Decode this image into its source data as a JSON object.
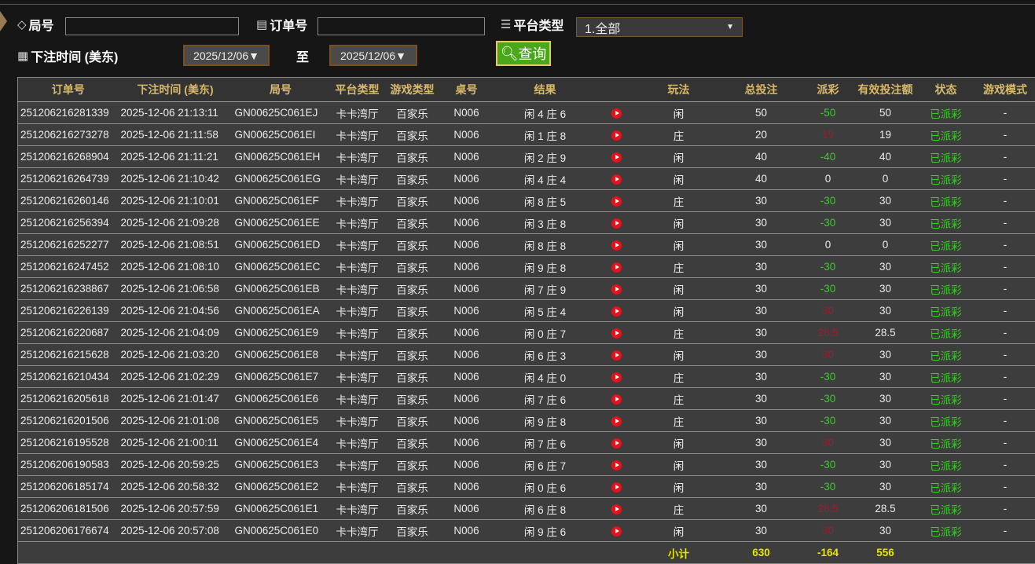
{
  "filters": {
    "round_label": "局号",
    "round_value": "",
    "order_label": "订单号",
    "order_value": "",
    "platform_label": "平台类型",
    "platform_value": "1.全部",
    "time_label": "下注时间 (美东)",
    "date_from": "2025/12/06▼",
    "to_label": "至",
    "date_to": "2025/12/06▼",
    "query_label": "查询"
  },
  "table": {
    "headers": [
      "订单号",
      "下注时间 (美东)",
      "局号",
      "平台类型",
      "游戏类型",
      "桌号",
      "结果",
      "",
      "玩法",
      "总投注",
      "派彩",
      "有效投注额",
      "状态",
      "游戏模式"
    ],
    "rows": [
      [
        "251206216281339",
        "2025-12-06 21:13:11",
        "GN00625C061EJ",
        "卡卡湾厅",
        "百家乐",
        "N006",
        "闲 4 庄 6",
        "闲",
        "50",
        "-50",
        "50",
        "已派彩",
        "-"
      ],
      [
        "251206216273278",
        "2025-12-06 21:11:58",
        "GN00625C061EI",
        "卡卡湾厅",
        "百家乐",
        "N006",
        "闲 1 庄 8",
        "庄",
        "20",
        "19",
        "19",
        "已派彩",
        "-"
      ],
      [
        "251206216268904",
        "2025-12-06 21:11:21",
        "GN00625C061EH",
        "卡卡湾厅",
        "百家乐",
        "N006",
        "闲 2 庄 9",
        "闲",
        "40",
        "-40",
        "40",
        "已派彩",
        "-"
      ],
      [
        "251206216264739",
        "2025-12-06 21:10:42",
        "GN00625C061EG",
        "卡卡湾厅",
        "百家乐",
        "N006",
        "闲 4 庄 4",
        "闲",
        "40",
        "0",
        "0",
        "已派彩",
        "-"
      ],
      [
        "251206216260146",
        "2025-12-06 21:10:01",
        "GN00625C061EF",
        "卡卡湾厅",
        "百家乐",
        "N006",
        "闲 8 庄 5",
        "庄",
        "30",
        "-30",
        "30",
        "已派彩",
        "-"
      ],
      [
        "251206216256394",
        "2025-12-06 21:09:28",
        "GN00625C061EE",
        "卡卡湾厅",
        "百家乐",
        "N006",
        "闲 3 庄 8",
        "闲",
        "30",
        "-30",
        "30",
        "已派彩",
        "-"
      ],
      [
        "251206216252277",
        "2025-12-06 21:08:51",
        "GN00625C061ED",
        "卡卡湾厅",
        "百家乐",
        "N006",
        "闲 8 庄 8",
        "闲",
        "30",
        "0",
        "0",
        "已派彩",
        "-"
      ],
      [
        "251206216247452",
        "2025-12-06 21:08:10",
        "GN00625C061EC",
        "卡卡湾厅",
        "百家乐",
        "N006",
        "闲 9 庄 8",
        "庄",
        "30",
        "-30",
        "30",
        "已派彩",
        "-"
      ],
      [
        "251206216238867",
        "2025-12-06 21:06:58",
        "GN00625C061EB",
        "卡卡湾厅",
        "百家乐",
        "N006",
        "闲 7 庄 9",
        "闲",
        "30",
        "-30",
        "30",
        "已派彩",
        "-"
      ],
      [
        "251206216226139",
        "2025-12-06 21:04:56",
        "GN00625C061EA",
        "卡卡湾厅",
        "百家乐",
        "N006",
        "闲 5 庄 4",
        "闲",
        "30",
        "30",
        "30",
        "已派彩",
        "-"
      ],
      [
        "251206216220687",
        "2025-12-06 21:04:09",
        "GN00625C061E9",
        "卡卡湾厅",
        "百家乐",
        "N006",
        "闲 0 庄 7",
        "庄",
        "30",
        "28.5",
        "28.5",
        "已派彩",
        "-"
      ],
      [
        "251206216215628",
        "2025-12-06 21:03:20",
        "GN00625C061E8",
        "卡卡湾厅",
        "百家乐",
        "N006",
        "闲 6 庄 3",
        "闲",
        "30",
        "30",
        "30",
        "已派彩",
        "-"
      ],
      [
        "251206216210434",
        "2025-12-06 21:02:29",
        "GN00625C061E7",
        "卡卡湾厅",
        "百家乐",
        "N006",
        "闲 4 庄 0",
        "庄",
        "30",
        "-30",
        "30",
        "已派彩",
        "-"
      ],
      [
        "251206216205618",
        "2025-12-06 21:01:47",
        "GN00625C061E6",
        "卡卡湾厅",
        "百家乐",
        "N006",
        "闲 7 庄 6",
        "庄",
        "30",
        "-30",
        "30",
        "已派彩",
        "-"
      ],
      [
        "251206216201506",
        "2025-12-06 21:01:08",
        "GN00625C061E5",
        "卡卡湾厅",
        "百家乐",
        "N006",
        "闲 9 庄 8",
        "庄",
        "30",
        "-30",
        "30",
        "已派彩",
        "-"
      ],
      [
        "251206216195528",
        "2025-12-06 21:00:11",
        "GN00625C061E4",
        "卡卡湾厅",
        "百家乐",
        "N006",
        "闲 7 庄 6",
        "闲",
        "30",
        "30",
        "30",
        "已派彩",
        "-"
      ],
      [
        "251206206190583",
        "2025-12-06 20:59:25",
        "GN00625C061E3",
        "卡卡湾厅",
        "百家乐",
        "N006",
        "闲 6 庄 7",
        "闲",
        "30",
        "-30",
        "30",
        "已派彩",
        "-"
      ],
      [
        "251206206185174",
        "2025-12-06 20:58:32",
        "GN00625C061E2",
        "卡卡湾厅",
        "百家乐",
        "N006",
        "闲 0 庄 6",
        "闲",
        "30",
        "-30",
        "30",
        "已派彩",
        "-"
      ],
      [
        "251206206181506",
        "2025-12-06 20:57:59",
        "GN00625C061E1",
        "卡卡湾厅",
        "百家乐",
        "N006",
        "闲 6 庄 8",
        "庄",
        "30",
        "28.5",
        "28.5",
        "已派彩",
        "-"
      ],
      [
        "251206206176674",
        "2025-12-06 20:57:08",
        "GN00625C061E0",
        "卡卡湾厅",
        "百家乐",
        "N006",
        "闲 9 庄 6",
        "闲",
        "30",
        "30",
        "30",
        "已派彩",
        "-"
      ]
    ],
    "subtotal": {
      "label": "小计",
      "total_bet": "630",
      "payout": "-164",
      "valid_bet": "556"
    }
  },
  "colors": {
    "header_text": "#d9b96a",
    "win_green": "#3ccc2a",
    "loss_red": "#a3182e",
    "subtotal": "#e6e600",
    "query_button": "#4aa61a"
  },
  "icons": {
    "round": "tag-icon",
    "order": "clipboard-icon",
    "platform": "list-icon",
    "time": "calendar-icon",
    "query": "search-icon",
    "video": "play-icon"
  }
}
